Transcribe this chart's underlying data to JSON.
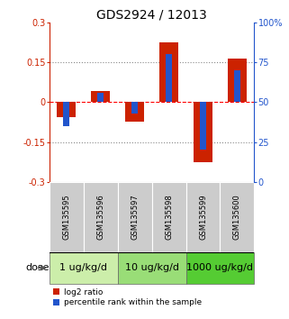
{
  "title": "GDS2924 / 12013",
  "samples": [
    "GSM135595",
    "GSM135596",
    "GSM135597",
    "GSM135598",
    "GSM135599",
    "GSM135600"
  ],
  "log2_ratio": [
    -0.055,
    0.042,
    -0.072,
    0.225,
    -0.225,
    0.165
  ],
  "percentile": [
    35,
    56,
    43,
    80,
    20,
    70
  ],
  "ylim_left": [
    -0.3,
    0.3
  ],
  "ylim_right": [
    0,
    100
  ],
  "yticks_left": [
    -0.3,
    -0.15,
    0,
    0.15,
    0.3
  ],
  "yticks_right": [
    0,
    25,
    50,
    75,
    100
  ],
  "ytick_labels_right": [
    "0",
    "25",
    "50",
    "75",
    "100%"
  ],
  "hlines_dotted": [
    -0.15,
    0.15
  ],
  "dose_groups": [
    {
      "label": "1 ug/kg/d",
      "samples": [
        0,
        1
      ],
      "color": "#cceeaa"
    },
    {
      "label": "10 ug/kg/d",
      "samples": [
        2,
        3
      ],
      "color": "#99dd77"
    },
    {
      "label": "1000 ug/kg/d",
      "samples": [
        4,
        5
      ],
      "color": "#55cc33"
    }
  ],
  "red_color": "#cc2200",
  "blue_color": "#2255cc",
  "dose_label": "dose",
  "legend_red": "log2 ratio",
  "legend_blue": "percentile rank within the sample",
  "sample_label_bg": "#cccccc",
  "title_fontsize": 10,
  "tick_fontsize": 7,
  "sample_fontsize": 6,
  "dose_fontsize": 8
}
